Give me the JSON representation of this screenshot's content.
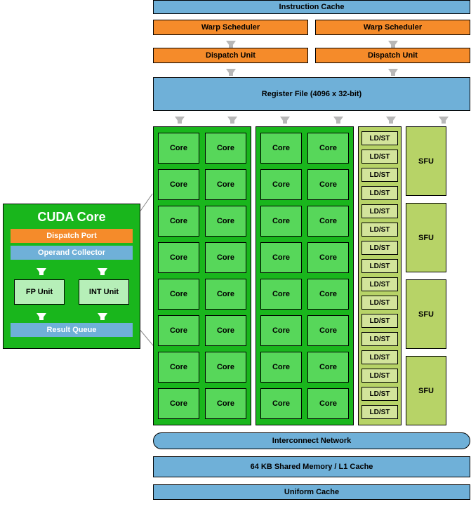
{
  "colors": {
    "blue": "#6fb0d8",
    "blueBorder": "#000000",
    "orange": "#f58b2a",
    "green": "#19b61c",
    "greenLight": "#57d75a",
    "yellowGreen": "#b7d367",
    "yellowGreenLight": "#d3e49b",
    "arrowGray": "#b8b8b8",
    "mintLight": "#b6efb8",
    "textDark": "#000000",
    "white": "#ffffff"
  },
  "top": {
    "instructionCache": "Instruction Cache",
    "warpScheduler": "Warp Scheduler",
    "dispatchUnit": "Dispatch Unit",
    "registerFile": "Register File (4096 x 32-bit)"
  },
  "coresArea": {
    "coreLabel": "Core",
    "coreRowsPerGroup": 8,
    "coreColsPerGroup": 2,
    "coreGroups": 2,
    "ldstLabel": "LD/ST",
    "ldstCount": 16,
    "sfuLabel": "SFU",
    "sfuCount": 4
  },
  "bottom": {
    "interconnect": "Interconnect Network",
    "sharedMem": "64 KB Shared Memory / L1 Cache",
    "uniformCache": "Uniform Cache"
  },
  "cuda": {
    "title": "CUDA Core",
    "dispatchPort": "Dispatch Port",
    "operandCollector": "Operand Collector",
    "fpUnit": "FP Unit",
    "intUnit": "INT Unit",
    "resultQueue": "Result Queue"
  },
  "layout": {
    "topBarHeight": 20,
    "schedulerHeight": 22,
    "registerHeight": 48,
    "coreGroupWidth": 140,
    "ldstGroupWidth": 62,
    "sfuGroupWidth": 58,
    "sharedMemHeight": 30,
    "uniformHeight": 22
  },
  "fonts": {
    "label": 11,
    "title": 18
  }
}
